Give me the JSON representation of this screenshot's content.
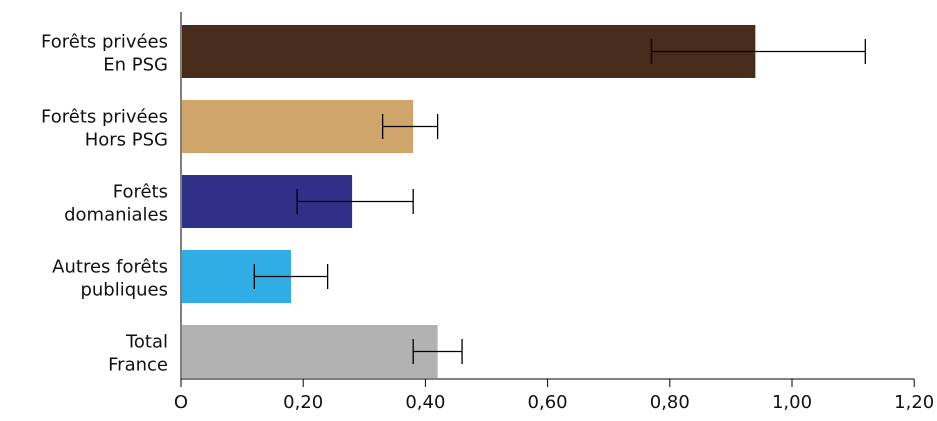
{
  "chart_data": {
    "type": "bar",
    "orientation": "horizontal",
    "title": "",
    "xlabel": "",
    "ylabel": "",
    "categories": [
      [
        "Forêts privées",
        "En PSG"
      ],
      [
        "Forêts privées",
        "Hors PSG"
      ],
      [
        "Forêts",
        "domaniales"
      ],
      [
        "Autres forêts",
        "publiques"
      ],
      [
        "Total",
        "France"
      ]
    ],
    "values": [
      0.94,
      0.38,
      0.28,
      0.18,
      0.42
    ],
    "error_low": [
      0.77,
      0.33,
      0.19,
      0.12,
      0.38
    ],
    "error_high": [
      1.12,
      0.42,
      0.38,
      0.24,
      0.46
    ],
    "colors": [
      "#472b1b",
      "#cfa56b",
      "#2e3187",
      "#31ade5",
      "#b2b2b2"
    ],
    "xlim": [
      0,
      1.2
    ],
    "x_ticks": [
      0,
      0.2,
      0.4,
      0.6,
      0.8,
      1.0,
      1.2
    ],
    "x_tick_labels": [
      "O",
      "0,20",
      "0,40",
      "0,60",
      "0,80",
      "1,00",
      "1,20"
    ],
    "grid": false,
    "legend": "none"
  }
}
